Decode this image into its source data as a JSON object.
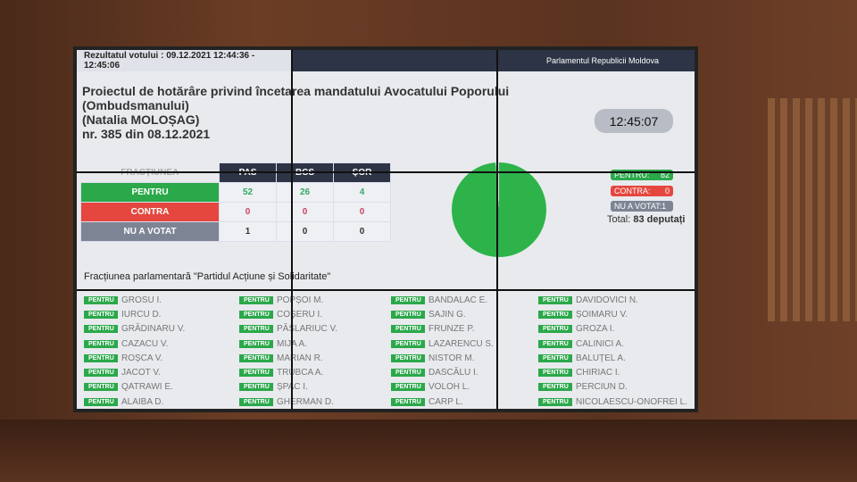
{
  "header": {
    "result": "Rezultatul votului : 09.12.2021 12:44:36 - 12:45:06",
    "institution": "Parlamentul Republicii Moldova"
  },
  "title": {
    "line1": "Proiectul de hotărâre privind încetarea mandatului Avocatului Poporului",
    "line2": "(Ombudsmanului)",
    "line3": "(Natalia MOLOȘAG)",
    "line4": "nr. 385 din 08.12.2021"
  },
  "clock": "12:45:07",
  "table": {
    "header": "FRACȚIUNEA",
    "columns": [
      "PAS",
      "BCS",
      "ȘOR"
    ],
    "rows": [
      {
        "label": "PENTRU",
        "color": "#2ba84a",
        "values": [
          "52",
          "26",
          "4"
        ]
      },
      {
        "label": "CONTRA",
        "color": "#e5473f",
        "values": [
          "0",
          "0",
          "0"
        ]
      },
      {
        "label": "NU A VOTAT",
        "color": "#7d8494",
        "values": [
          "1",
          "0",
          "0"
        ]
      }
    ]
  },
  "legend": {
    "pentru": "PENTRU:",
    "pentru_n": "82",
    "contra": "CONTRA:",
    "contra_n": "0",
    "nu": "NU A VOTAT:1",
    "total_label": "Total:",
    "total_value": "83 deputați"
  },
  "pie": {
    "pentru": 82,
    "contra": 0,
    "nu_a_votat": 1
  },
  "fraction": "Fracțiunea parlamentară \"Partidul Acțiune și Solidaritate\"",
  "vote_badge": "PENTRU",
  "columns": [
    [
      "GROSU I.",
      "IURCU D.",
      "GRĂDINARU V.",
      "CAZACU V.",
      "ROȘCA V.",
      "JACOT V.",
      "QATRAWI E.",
      "ALAIBA D."
    ],
    [
      "POPȘOI M.",
      "COȘERU I.",
      "PĂSLARIUC V.",
      "MIJA A.",
      "MARIAN R.",
      "TRUBCA A.",
      "ȘPAC I.",
      "GHERMAN D."
    ],
    [
      "BANDALAC E.",
      "SAJIN G.",
      "FRUNZE P.",
      "LAZARENCU S.",
      "NISTOR M.",
      "DASCĂLU I.",
      "VOLOH L.",
      "CARP L."
    ],
    [
      "DAVIDOVICI N.",
      "ȘOIMARU V.",
      "GROZA I.",
      "CALINICI A.",
      "BALUȚEL A.",
      "CHIRIAC I.",
      "PERCIUN D.",
      "NICOLAESCU-ONOFREI L."
    ]
  ]
}
